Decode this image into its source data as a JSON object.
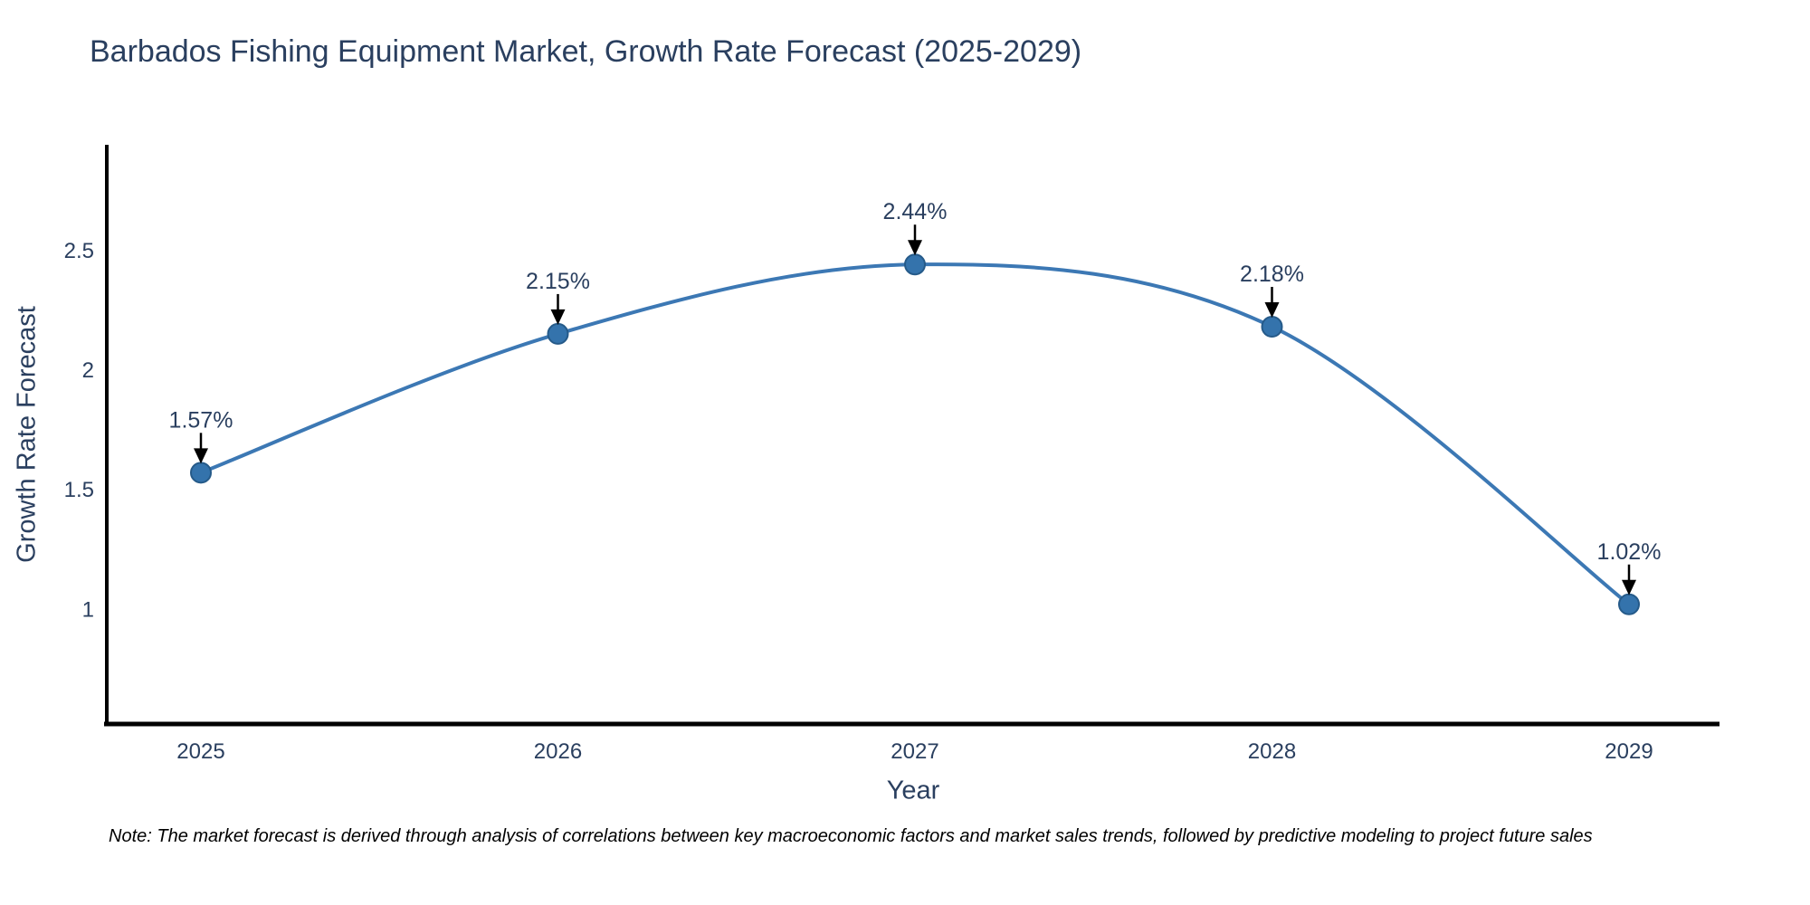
{
  "chart_data": {
    "type": "line",
    "title": "Barbados Fishing Equipment Market, Growth Rate Forecast (2025-2029)",
    "xlabel": "Year",
    "ylabel": "Growth Rate Forecast",
    "categories": [
      "2025",
      "2026",
      "2027",
      "2028",
      "2029"
    ],
    "series": [
      {
        "name": "Growth Rate Forecast",
        "values": [
          1.57,
          2.15,
          2.44,
          2.18,
          1.02
        ],
        "point_labels": [
          "1.57%",
          "2.15%",
          "2.44%",
          "2.18%",
          "1.02%"
        ]
      }
    ],
    "line_shape": "spline",
    "yticks": [
      1,
      1.5,
      2,
      2.5
    ],
    "ytick_labels": [
      "1",
      "1.5",
      "2",
      "2.5"
    ],
    "ylim": [
      0.52,
      2.94
    ],
    "grid": false,
    "legend": "none",
    "colors": {
      "line": "#3c78b4",
      "marker_fill": "#3473ac",
      "marker_border": "#255a89",
      "axis_line": "#000000",
      "text": "#2a3f5f",
      "annotation_text": "#2a3f5f",
      "annotation_arrow": "#000000"
    }
  },
  "note": "Note: The market forecast is derived through analysis of correlations between key macroeconomic factors and market sales trends, followed by predictive modeling to project future sales"
}
